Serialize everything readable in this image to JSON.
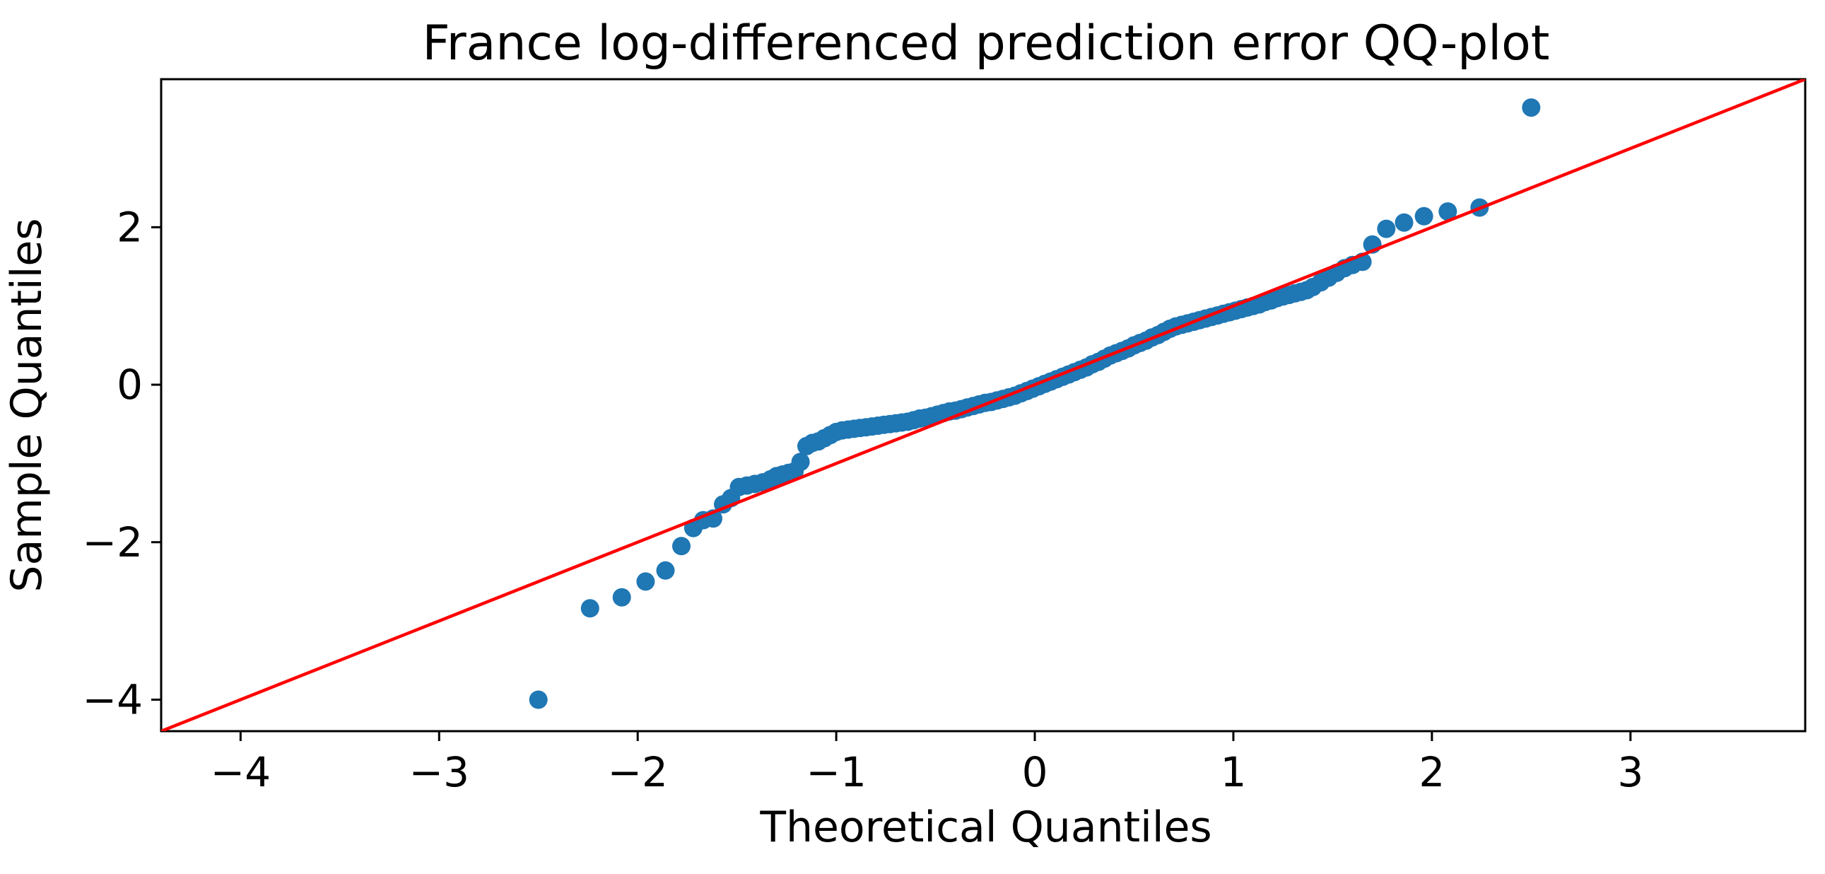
{
  "chart_data": {
    "type": "scatter",
    "title": "France log-differenced prediction error QQ-plot",
    "xlabel": "Theoretical Quantiles",
    "ylabel": "Sample Quantiles",
    "xlim": [
      -4.4,
      3.88
    ],
    "ylim": [
      -4.4,
      3.88
    ],
    "xticks": [
      -4,
      -3,
      -2,
      -1,
      0,
      1,
      2,
      3
    ],
    "xtick_labels": [
      "−4",
      "−3",
      "−2",
      "−1",
      "0",
      "1",
      "2",
      "3"
    ],
    "yticks": [
      -4,
      -2,
      0,
      2
    ],
    "ytick_labels": [
      "−4",
      "−2",
      "0",
      "2"
    ],
    "grid": false,
    "colors": {
      "points": "#1f77b4",
      "reference_line": "#ff0000"
    },
    "reference_line": {
      "x": [
        -4.4,
        3.88
      ],
      "y": [
        -4.4,
        3.88
      ]
    },
    "series": [
      {
        "x": [
          -2.5,
          -2.24,
          -2.08,
          -1.96,
          -1.86,
          -1.78,
          -1.72,
          -1.67,
          -1.62,
          -1.57,
          -1.53,
          -1.49,
          -1.45,
          -1.41,
          -1.37,
          -1.33,
          -1.3,
          -1.27,
          -1.24,
          -1.21,
          -1.18,
          -1.15,
          -1.12,
          -1.09,
          -1.06,
          -1.03,
          -1.0,
          -0.97,
          -0.94,
          -0.91,
          -0.88,
          -0.85,
          -0.82,
          -0.79,
          -0.76,
          -0.73,
          -0.7,
          -0.67,
          -0.64,
          -0.61,
          -0.58,
          -0.55,
          -0.52,
          -0.49,
          -0.46,
          -0.43,
          -0.4,
          -0.37,
          -0.34,
          -0.31,
          -0.28,
          -0.25,
          -0.22,
          -0.19,
          -0.16,
          -0.13,
          -0.1,
          -0.07,
          -0.04,
          -0.01,
          0.02,
          0.05,
          0.08,
          0.11,
          0.14,
          0.17,
          0.2,
          0.23,
          0.26,
          0.29,
          0.32,
          0.35,
          0.38,
          0.41,
          0.44,
          0.47,
          0.5,
          0.53,
          0.56,
          0.59,
          0.62,
          0.65,
          0.68,
          0.71,
          0.74,
          0.77,
          0.8,
          0.83,
          0.86,
          0.89,
          0.92,
          0.95,
          0.98,
          1.01,
          1.04,
          1.07,
          1.1,
          1.13,
          1.16,
          1.19,
          1.22,
          1.25,
          1.28,
          1.31,
          1.34,
          1.37,
          1.4,
          1.44,
          1.48,
          1.52,
          1.56,
          1.6,
          1.65,
          1.7,
          1.77,
          1.86,
          1.96,
          2.08,
          2.24,
          2.5
        ],
        "y": [
          -4.0,
          -2.84,
          -2.7,
          -2.5,
          -2.36,
          -2.05,
          -1.82,
          -1.72,
          -1.7,
          -1.52,
          -1.44,
          -1.3,
          -1.28,
          -1.26,
          -1.24,
          -1.2,
          -1.16,
          -1.14,
          -1.12,
          -1.1,
          -0.98,
          -0.78,
          -0.74,
          -0.72,
          -0.68,
          -0.64,
          -0.6,
          -0.58,
          -0.57,
          -0.56,
          -0.55,
          -0.54,
          -0.53,
          -0.52,
          -0.51,
          -0.5,
          -0.49,
          -0.48,
          -0.47,
          -0.45,
          -0.43,
          -0.42,
          -0.4,
          -0.38,
          -0.36,
          -0.34,
          -0.33,
          -0.31,
          -0.29,
          -0.27,
          -0.25,
          -0.23,
          -0.22,
          -0.2,
          -0.18,
          -0.16,
          -0.14,
          -0.11,
          -0.08,
          -0.05,
          -0.02,
          0.01,
          0.04,
          0.07,
          0.1,
          0.13,
          0.16,
          0.19,
          0.22,
          0.26,
          0.29,
          0.33,
          0.37,
          0.4,
          0.43,
          0.46,
          0.5,
          0.53,
          0.56,
          0.6,
          0.63,
          0.67,
          0.71,
          0.74,
          0.76,
          0.78,
          0.8,
          0.82,
          0.84,
          0.86,
          0.88,
          0.9,
          0.92,
          0.94,
          0.96,
          0.98,
          1.0,
          1.02,
          1.05,
          1.07,
          1.1,
          1.12,
          1.14,
          1.16,
          1.18,
          1.2,
          1.24,
          1.3,
          1.36,
          1.42,
          1.48,
          1.52,
          1.56,
          1.78,
          1.98,
          2.06,
          2.14,
          2.2,
          2.25,
          3.52
        ]
      }
    ]
  }
}
